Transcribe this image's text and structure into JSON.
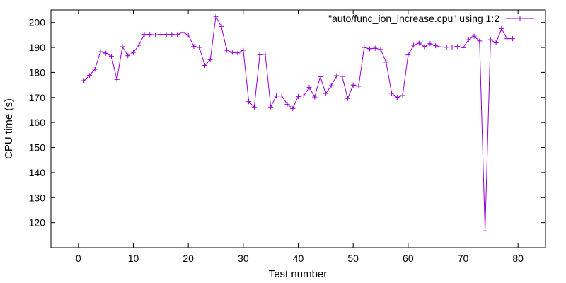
{
  "chart_data": {
    "type": "line",
    "title": "",
    "xlabel": "Test number",
    "ylabel": "CPU time (s)",
    "xlim": [
      -5,
      85
    ],
    "ylim": [
      110,
      205
    ],
    "xticks": [
      "0",
      "10",
      "20",
      "30",
      "40",
      "50",
      "60",
      "70",
      "80"
    ],
    "yticks": [
      "120",
      "130",
      "140",
      "150",
      "160",
      "170",
      "180",
      "190",
      "200"
    ],
    "grid": false,
    "legend_position": "top-right",
    "series": [
      {
        "name": "\"auto/func_ion_increase.cpu\" using 1:2",
        "color": "#9400D3",
        "marker": "plus",
        "x": [
          1,
          2,
          3,
          4,
          5,
          6,
          7,
          8,
          9,
          10,
          11,
          12,
          13,
          14,
          15,
          16,
          17,
          18,
          19,
          20,
          21,
          22,
          23,
          24,
          25,
          26,
          27,
          28,
          29,
          30,
          31,
          32,
          33,
          34,
          35,
          36,
          37,
          38,
          39,
          40,
          41,
          42,
          43,
          44,
          45,
          46,
          47,
          48,
          49,
          50,
          51,
          52,
          53,
          54,
          55,
          56,
          57,
          58,
          59,
          60,
          61,
          62,
          63,
          64,
          65,
          66,
          67,
          68,
          69,
          70,
          71,
          72,
          73,
          74,
          75,
          76,
          77,
          78,
          79
        ],
        "y": [
          176.7,
          178.8,
          181.3,
          188.3,
          187.7,
          186.5,
          177.2,
          190.3,
          186.7,
          188.0,
          190.9,
          195.2,
          195.2,
          195.0,
          195.2,
          195.2,
          195.2,
          195.1,
          196.0,
          194.9,
          190.4,
          190.0,
          182.8,
          185.1,
          202.4,
          198.4,
          188.9,
          188.0,
          187.8,
          188.9,
          168.3,
          166.2,
          187.0,
          187.3,
          166.2,
          170.6,
          170.6,
          167.3,
          165.6,
          170.4,
          170.7,
          174.0,
          170.2,
          178.3,
          171.6,
          174.7,
          178.7,
          178.4,
          169.6,
          175.0,
          174.5,
          190.0,
          189.5,
          189.7,
          189.2,
          184.1,
          171.7,
          170.0,
          170.8,
          187.0,
          190.9,
          191.7,
          190.3,
          191.5,
          190.7,
          190.2,
          190.1,
          190.2,
          190.4,
          189.9,
          193.1,
          194.5,
          192.6,
          116.7,
          193.1,
          191.8,
          197.5,
          193.5,
          193.5
        ]
      }
    ]
  }
}
